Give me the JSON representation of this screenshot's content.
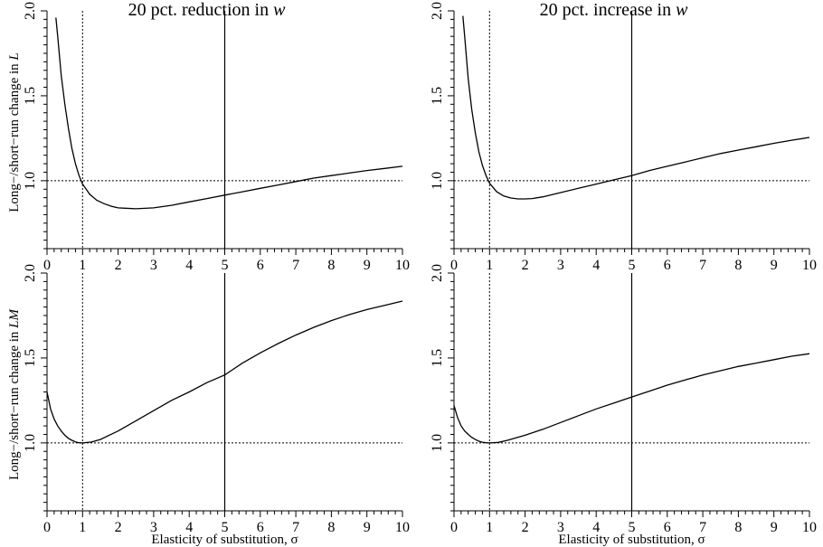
{
  "chart_data": [
    {
      "type": "line",
      "title": "20 pct. reduction in w",
      "title_text": "20 pct. reduction in ",
      "title_var": "w",
      "ylabel": "Long−/short−run change in L",
      "ylabel_text": "Long−/short−run change in ",
      "ylabel_var": "L",
      "xlabel": "",
      "xlim": [
        0,
        10
      ],
      "ylim": [
        0.6,
        2.0
      ],
      "x_ticks": [
        "0",
        "1",
        "2",
        "3",
        "4",
        "5",
        "6",
        "7",
        "8",
        "9",
        "10"
      ],
      "y_ticks": [
        "1.0",
        "1.5",
        "2.0"
      ],
      "reference_lines": {
        "hline": 1.0,
        "vline_dotted": 1,
        "vline_solid": 5
      },
      "series": [
        {
          "x": [
            0.25,
            0.3,
            0.4,
            0.5,
            0.6,
            0.7,
            0.8,
            0.9,
            1.0,
            1.2,
            1.4,
            1.6,
            1.8,
            2.0,
            2.2,
            2.5,
            3.0,
            3.5,
            4.0,
            4.5,
            5.0,
            5.5,
            6.0,
            6.5,
            7.0,
            7.5,
            8.0,
            8.5,
            9.0,
            9.5,
            10.0
          ],
          "y": [
            1.96,
            1.85,
            1.62,
            1.45,
            1.31,
            1.19,
            1.1,
            1.03,
            0.98,
            0.92,
            0.885,
            0.865,
            0.85,
            0.84,
            0.838,
            0.835,
            0.84,
            0.855,
            0.875,
            0.895,
            0.915,
            0.935,
            0.955,
            0.975,
            0.995,
            1.015,
            1.03,
            1.045,
            1.06,
            1.072,
            1.085
          ]
        }
      ]
    },
    {
      "type": "line",
      "title": "20 pct. increase in w",
      "title_text": "20 pct. increase in ",
      "title_var": "w",
      "ylabel": "",
      "xlabel": "",
      "xlim": [
        0,
        10
      ],
      "ylim": [
        0.6,
        2.0
      ],
      "x_ticks": [
        "0",
        "1",
        "2",
        "3",
        "4",
        "5",
        "6",
        "7",
        "8",
        "9",
        "10"
      ],
      "y_ticks": [
        "1.0",
        "1.5",
        "2.0"
      ],
      "reference_lines": {
        "hline": 1.0,
        "vline_dotted": 1,
        "vline_solid": 5
      },
      "series": [
        {
          "x": [
            0.25,
            0.3,
            0.4,
            0.5,
            0.6,
            0.7,
            0.8,
            0.9,
            1.0,
            1.2,
            1.4,
            1.6,
            1.8,
            2.0,
            2.2,
            2.5,
            3.0,
            3.5,
            4.0,
            4.5,
            5.0,
            5.5,
            6.0,
            6.5,
            7.0,
            7.5,
            8.0,
            8.5,
            9.0,
            9.5,
            10.0
          ],
          "y": [
            1.97,
            1.85,
            1.6,
            1.42,
            1.28,
            1.17,
            1.09,
            1.03,
            0.985,
            0.935,
            0.91,
            0.898,
            0.893,
            0.893,
            0.895,
            0.905,
            0.93,
            0.955,
            0.98,
            1.005,
            1.03,
            1.06,
            1.085,
            1.11,
            1.135,
            1.16,
            1.18,
            1.2,
            1.22,
            1.238,
            1.255
          ]
        }
      ]
    },
    {
      "type": "line",
      "title": "",
      "ylabel": "Long−/short−run change in LM",
      "ylabel_text": "Long−/short−run change in ",
      "ylabel_var": "LM",
      "xlabel": "Elasticity of substitution, σ",
      "xlim": [
        0,
        10
      ],
      "ylim": [
        0.6,
        2.0
      ],
      "x_ticks": [
        "0",
        "1",
        "2",
        "3",
        "4",
        "5",
        "6",
        "7",
        "8",
        "9",
        "10"
      ],
      "y_ticks": [
        "1.0",
        "1.5",
        "2.0"
      ],
      "reference_lines": {
        "hline": 1.0,
        "vline_dotted": 1,
        "vline_solid": 5
      },
      "series": [
        {
          "x": [
            0.0,
            0.1,
            0.2,
            0.3,
            0.4,
            0.5,
            0.6,
            0.7,
            0.8,
            0.9,
            1.0,
            1.25,
            1.5,
            2.0,
            2.5,
            3.0,
            3.5,
            4.0,
            4.5,
            5.0,
            5.5,
            6.0,
            6.5,
            7.0,
            7.5,
            8.0,
            8.5,
            9.0,
            9.5,
            10.0
          ],
          "y": [
            1.3,
            1.2,
            1.14,
            1.1,
            1.07,
            1.045,
            1.027,
            1.015,
            1.006,
            1.001,
            1.0,
            1.005,
            1.02,
            1.07,
            1.13,
            1.19,
            1.25,
            1.3,
            1.355,
            1.4,
            1.47,
            1.53,
            1.585,
            1.635,
            1.68,
            1.72,
            1.755,
            1.785,
            1.81,
            1.835
          ]
        }
      ]
    },
    {
      "type": "line",
      "title": "",
      "ylabel": "",
      "xlabel": "Elasticity of substitution, σ",
      "xlim": [
        0,
        10
      ],
      "ylim": [
        0.6,
        2.0
      ],
      "x_ticks": [
        "0",
        "1",
        "2",
        "3",
        "4",
        "5",
        "6",
        "7",
        "8",
        "9",
        "10"
      ],
      "y_ticks": [
        "1.0",
        "1.5",
        "2.0"
      ],
      "reference_lines": {
        "hline": 1.0,
        "vline_dotted": 1,
        "vline_solid": 5
      },
      "series": [
        {
          "x": [
            0.0,
            0.1,
            0.2,
            0.3,
            0.4,
            0.5,
            0.6,
            0.7,
            0.8,
            0.9,
            1.0,
            1.25,
            1.5,
            2.0,
            2.5,
            3.0,
            3.5,
            4.0,
            4.5,
            5.0,
            5.5,
            6.0,
            6.5,
            7.0,
            7.5,
            8.0,
            8.5,
            9.0,
            9.5,
            10.0
          ],
          "y": [
            1.22,
            1.15,
            1.1,
            1.07,
            1.05,
            1.033,
            1.02,
            1.01,
            1.004,
            1.001,
            1.0,
            1.003,
            1.015,
            1.045,
            1.08,
            1.12,
            1.16,
            1.2,
            1.235,
            1.27,
            1.305,
            1.34,
            1.37,
            1.4,
            1.425,
            1.45,
            1.47,
            1.49,
            1.51,
            1.525
          ]
        }
      ]
    }
  ]
}
